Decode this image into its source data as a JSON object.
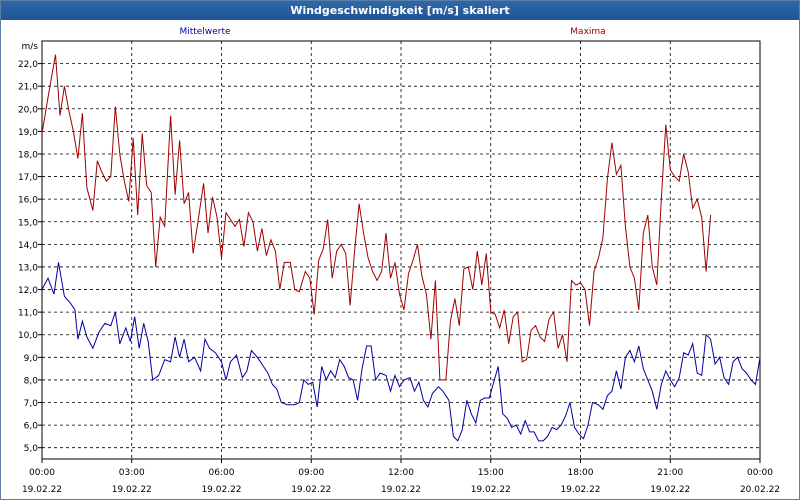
{
  "window": {
    "title": "Windgeschwindigkeit [m/s] skaliert"
  },
  "chart_data": {
    "type": "line",
    "title": "Windgeschwindigkeit [m/s] skaliert",
    "ylabel": "m/s",
    "ylim": [
      4.5,
      23.0
    ],
    "yticks": [
      "5,0",
      "6,0",
      "7,0",
      "8,0",
      "9,0",
      "10,0",
      "11,0",
      "12,0",
      "13,0",
      "14,0",
      "15,0",
      "16,0",
      "17,0",
      "18,0",
      "19,0",
      "20,0",
      "21,0",
      "22,0"
    ],
    "xlim": [
      0,
      24
    ],
    "xticks": [
      {
        "time": "00:00",
        "date": "19.02.22"
      },
      {
        "time": "03:00",
        "date": "19.02.22"
      },
      {
        "time": "06:00",
        "date": "19.02.22"
      },
      {
        "time": "09:00",
        "date": "19.02.22"
      },
      {
        "time": "12:00",
        "date": "19.02.22"
      },
      {
        "time": "15:00",
        "date": "19.02.22"
      },
      {
        "time": "18:00",
        "date": "19.02.22"
      },
      {
        "time": "21:00",
        "date": "19.02.22"
      },
      {
        "time": "00:00",
        "date": "20.02.22"
      }
    ],
    "grid": true,
    "series": [
      {
        "name": "Mittelwerte",
        "color": "#0000a0",
        "values": [
          [
            0.0,
            12.0
          ],
          [
            0.2,
            12.5
          ],
          [
            0.4,
            11.8
          ],
          [
            0.55,
            13.2
          ],
          [
            0.75,
            11.7
          ],
          [
            0.95,
            11.4
          ],
          [
            1.1,
            11.1
          ],
          [
            1.2,
            9.8
          ],
          [
            1.35,
            10.6
          ],
          [
            1.5,
            9.9
          ],
          [
            1.7,
            9.4
          ],
          [
            1.9,
            10.1
          ],
          [
            2.1,
            10.5
          ],
          [
            2.3,
            10.4
          ],
          [
            2.45,
            11.0
          ],
          [
            2.6,
            9.6
          ],
          [
            2.8,
            10.3
          ],
          [
            2.95,
            9.7
          ],
          [
            3.1,
            10.8
          ],
          [
            3.25,
            9.4
          ],
          [
            3.4,
            10.5
          ],
          [
            3.55,
            9.7
          ],
          [
            3.7,
            8.0
          ],
          [
            3.9,
            8.2
          ],
          [
            4.1,
            8.9
          ],
          [
            4.3,
            8.8
          ],
          [
            4.45,
            9.9
          ],
          [
            4.6,
            9.0
          ],
          [
            4.75,
            9.8
          ],
          [
            4.9,
            8.8
          ],
          [
            5.1,
            9.0
          ],
          [
            5.3,
            8.4
          ],
          [
            5.45,
            9.8
          ],
          [
            5.6,
            9.4
          ],
          [
            5.8,
            9.2
          ],
          [
            6.0,
            8.8
          ],
          [
            6.15,
            8.0
          ],
          [
            6.3,
            8.8
          ],
          [
            6.5,
            9.1
          ],
          [
            6.7,
            8.1
          ],
          [
            6.85,
            8.4
          ],
          [
            7.0,
            9.3
          ],
          [
            7.2,
            9.0
          ],
          [
            7.4,
            8.6
          ],
          [
            7.55,
            8.3
          ],
          [
            7.7,
            7.8
          ],
          [
            7.85,
            7.6
          ],
          [
            8.0,
            7.0
          ],
          [
            8.2,
            6.9
          ],
          [
            8.45,
            6.9
          ],
          [
            8.6,
            7.0
          ],
          [
            8.75,
            8.0
          ],
          [
            8.9,
            7.8
          ],
          [
            9.05,
            7.9
          ],
          [
            9.2,
            6.8
          ],
          [
            9.35,
            8.6
          ],
          [
            9.5,
            8.0
          ],
          [
            9.65,
            8.4
          ],
          [
            9.8,
            8.1
          ],
          [
            9.95,
            8.9
          ],
          [
            10.1,
            8.6
          ],
          [
            10.25,
            8.1
          ],
          [
            10.4,
            8.0
          ],
          [
            10.55,
            7.1
          ],
          [
            10.7,
            8.5
          ],
          [
            10.85,
            9.5
          ],
          [
            11.0,
            9.5
          ],
          [
            11.15,
            8.0
          ],
          [
            11.3,
            8.3
          ],
          [
            11.5,
            8.2
          ],
          [
            11.65,
            7.5
          ],
          [
            11.8,
            8.2
          ],
          [
            11.95,
            7.7
          ],
          [
            12.1,
            8.0
          ],
          [
            12.3,
            8.1
          ],
          [
            12.45,
            7.5
          ],
          [
            12.6,
            7.9
          ],
          [
            12.75,
            7.1
          ],
          [
            12.9,
            6.8
          ],
          [
            13.05,
            7.4
          ],
          [
            13.25,
            7.7
          ],
          [
            13.4,
            7.5
          ],
          [
            13.6,
            7.1
          ],
          [
            13.75,
            5.5
          ],
          [
            13.9,
            5.3
          ],
          [
            14.05,
            5.8
          ],
          [
            14.2,
            7.1
          ],
          [
            14.35,
            6.5
          ],
          [
            14.5,
            6.1
          ],
          [
            14.65,
            7.1
          ],
          [
            14.8,
            7.2
          ],
          [
            14.95,
            7.2
          ],
          [
            15.1,
            7.9
          ],
          [
            15.25,
            8.6
          ],
          [
            15.4,
            6.5
          ],
          [
            15.55,
            6.3
          ],
          [
            15.7,
            5.9
          ],
          [
            15.85,
            6.0
          ],
          [
            16.0,
            5.6
          ],
          [
            16.15,
            6.2
          ],
          [
            16.3,
            5.7
          ],
          [
            16.45,
            5.7
          ],
          [
            16.6,
            5.3
          ],
          [
            16.75,
            5.3
          ],
          [
            16.9,
            5.5
          ],
          [
            17.05,
            5.9
          ],
          [
            17.2,
            5.8
          ],
          [
            17.35,
            6.0
          ],
          [
            17.5,
            6.4
          ],
          [
            17.65,
            7.0
          ],
          [
            17.8,
            5.9
          ],
          [
            17.95,
            5.6
          ],
          [
            18.1,
            5.4
          ],
          [
            18.25,
            6.0
          ],
          [
            18.4,
            7.0
          ],
          [
            18.6,
            6.9
          ],
          [
            18.75,
            6.7
          ],
          [
            18.9,
            7.3
          ],
          [
            19.05,
            7.5
          ],
          [
            19.2,
            8.4
          ],
          [
            19.35,
            7.6
          ],
          [
            19.5,
            9.0
          ],
          [
            19.65,
            9.3
          ],
          [
            19.8,
            8.8
          ],
          [
            19.95,
            9.5
          ],
          [
            20.1,
            8.5
          ],
          [
            20.25,
            8.0
          ],
          [
            20.4,
            7.5
          ],
          [
            20.55,
            6.7
          ],
          [
            20.7,
            7.8
          ],
          [
            20.85,
            8.4
          ],
          [
            21.0,
            8.0
          ],
          [
            21.15,
            7.7
          ],
          [
            21.3,
            8.1
          ],
          [
            21.45,
            9.2
          ],
          [
            21.6,
            9.1
          ],
          [
            21.75,
            9.6
          ],
          [
            21.9,
            8.3
          ],
          [
            22.05,
            8.2
          ],
          [
            22.2,
            10.0
          ],
          [
            22.35,
            9.8
          ],
          [
            22.5,
            8.7
          ],
          [
            22.65,
            9.0
          ],
          [
            22.8,
            8.1
          ],
          [
            22.95,
            7.8
          ],
          [
            23.1,
            8.8
          ],
          [
            23.25,
            9.0
          ],
          [
            23.4,
            8.5
          ],
          [
            23.55,
            8.3
          ],
          [
            23.7,
            8.0
          ],
          [
            23.85,
            7.8
          ],
          [
            24.0,
            9.0
          ]
        ]
      },
      {
        "name": "Maxima",
        "color": "#a00000",
        "values": [
          [
            0.0,
            18.9
          ],
          [
            0.2,
            20.5
          ],
          [
            0.45,
            22.4
          ],
          [
            0.6,
            19.7
          ],
          [
            0.75,
            21.0
          ],
          [
            0.9,
            19.9
          ],
          [
            1.05,
            19.0
          ],
          [
            1.2,
            17.8
          ],
          [
            1.35,
            19.8
          ],
          [
            1.5,
            16.5
          ],
          [
            1.7,
            15.5
          ],
          [
            1.85,
            17.7
          ],
          [
            2.0,
            17.2
          ],
          [
            2.15,
            16.8
          ],
          [
            2.3,
            17.0
          ],
          [
            2.45,
            20.1
          ],
          [
            2.6,
            18.0
          ],
          [
            2.75,
            16.8
          ],
          [
            2.9,
            15.9
          ],
          [
            3.05,
            18.7
          ],
          [
            3.2,
            15.3
          ],
          [
            3.35,
            18.9
          ],
          [
            3.5,
            16.6
          ],
          [
            3.65,
            16.3
          ],
          [
            3.8,
            13.0
          ],
          [
            3.95,
            15.2
          ],
          [
            4.1,
            14.8
          ],
          [
            4.3,
            19.7
          ],
          [
            4.45,
            16.2
          ],
          [
            4.6,
            18.6
          ],
          [
            4.75,
            15.8
          ],
          [
            4.9,
            16.3
          ],
          [
            5.05,
            13.6
          ],
          [
            5.2,
            14.9
          ],
          [
            5.4,
            16.7
          ],
          [
            5.55,
            14.5
          ],
          [
            5.7,
            16.1
          ],
          [
            5.85,
            15.2
          ],
          [
            6.0,
            13.4
          ],
          [
            6.15,
            15.4
          ],
          [
            6.3,
            15.1
          ],
          [
            6.45,
            14.8
          ],
          [
            6.6,
            15.1
          ],
          [
            6.75,
            13.9
          ],
          [
            6.9,
            15.4
          ],
          [
            7.05,
            15.0
          ],
          [
            7.2,
            13.7
          ],
          [
            7.35,
            14.7
          ],
          [
            7.5,
            13.5
          ],
          [
            7.65,
            14.2
          ],
          [
            7.8,
            13.7
          ],
          [
            7.95,
            12.0
          ],
          [
            8.1,
            13.2
          ],
          [
            8.3,
            13.2
          ],
          [
            8.45,
            12.0
          ],
          [
            8.6,
            11.9
          ],
          [
            8.8,
            12.8
          ],
          [
            8.95,
            12.5
          ],
          [
            9.1,
            10.9
          ],
          [
            9.25,
            13.3
          ],
          [
            9.4,
            13.8
          ],
          [
            9.55,
            15.1
          ],
          [
            9.7,
            12.5
          ],
          [
            9.85,
            13.7
          ],
          [
            10.0,
            14.0
          ],
          [
            10.15,
            13.6
          ],
          [
            10.3,
            11.3
          ],
          [
            10.45,
            13.7
          ],
          [
            10.6,
            15.8
          ],
          [
            10.75,
            14.5
          ],
          [
            10.9,
            13.4
          ],
          [
            11.05,
            12.8
          ],
          [
            11.2,
            12.4
          ],
          [
            11.35,
            12.8
          ],
          [
            11.5,
            14.5
          ],
          [
            11.65,
            12.5
          ],
          [
            11.8,
            13.2
          ],
          [
            11.95,
            11.8
          ],
          [
            12.1,
            11.1
          ],
          [
            12.25,
            12.7
          ],
          [
            12.4,
            13.3
          ],
          [
            12.55,
            14.0
          ],
          [
            12.7,
            12.6
          ],
          [
            12.85,
            11.8
          ],
          [
            13.0,
            9.8
          ],
          [
            13.15,
            12.4
          ],
          [
            13.3,
            8.0
          ],
          [
            13.5,
            8.0
          ],
          [
            13.65,
            10.6
          ],
          [
            13.8,
            11.6
          ],
          [
            13.95,
            10.4
          ],
          [
            14.1,
            12.9
          ],
          [
            14.25,
            13.0
          ],
          [
            14.4,
            12.0
          ],
          [
            14.55,
            13.7
          ],
          [
            14.7,
            12.2
          ],
          [
            14.85,
            13.6
          ],
          [
            15.0,
            11.0
          ],
          [
            15.15,
            10.9
          ],
          [
            15.3,
            10.3
          ],
          [
            15.45,
            11.1
          ],
          [
            15.6,
            9.6
          ],
          [
            15.75,
            10.8
          ],
          [
            15.9,
            11.0
          ],
          [
            16.05,
            8.8
          ],
          [
            16.2,
            8.9
          ],
          [
            16.35,
            10.2
          ],
          [
            16.5,
            10.4
          ],
          [
            16.65,
            9.9
          ],
          [
            16.8,
            9.7
          ],
          [
            16.95,
            10.7
          ],
          [
            17.1,
            11.0
          ],
          [
            17.25,
            9.4
          ],
          [
            17.4,
            10.0
          ],
          [
            17.55,
            8.8
          ],
          [
            17.7,
            12.4
          ],
          [
            17.85,
            12.2
          ],
          [
            18.0,
            12.3
          ],
          [
            18.15,
            12.0
          ],
          [
            18.3,
            10.4
          ],
          [
            18.45,
            12.8
          ],
          [
            18.6,
            13.4
          ],
          [
            18.75,
            14.3
          ],
          [
            18.9,
            16.9
          ],
          [
            19.05,
            18.5
          ],
          [
            19.2,
            17.1
          ],
          [
            19.35,
            17.5
          ],
          [
            19.5,
            14.8
          ],
          [
            19.65,
            13.0
          ],
          [
            19.8,
            12.5
          ],
          [
            19.95,
            11.1
          ],
          [
            20.1,
            14.5
          ],
          [
            20.25,
            15.3
          ],
          [
            20.4,
            13.0
          ],
          [
            20.55,
            12.2
          ],
          [
            20.7,
            16.0
          ],
          [
            20.85,
            19.3
          ],
          [
            21.0,
            17.3
          ],
          [
            21.15,
            17.0
          ],
          [
            21.3,
            16.8
          ],
          [
            21.45,
            18.0
          ],
          [
            21.6,
            17.2
          ],
          [
            21.75,
            15.6
          ],
          [
            21.9,
            16.0
          ],
          [
            22.05,
            15.2
          ],
          [
            22.2,
            12.8
          ],
          [
            22.35,
            15.3
          ]
        ]
      }
    ]
  }
}
